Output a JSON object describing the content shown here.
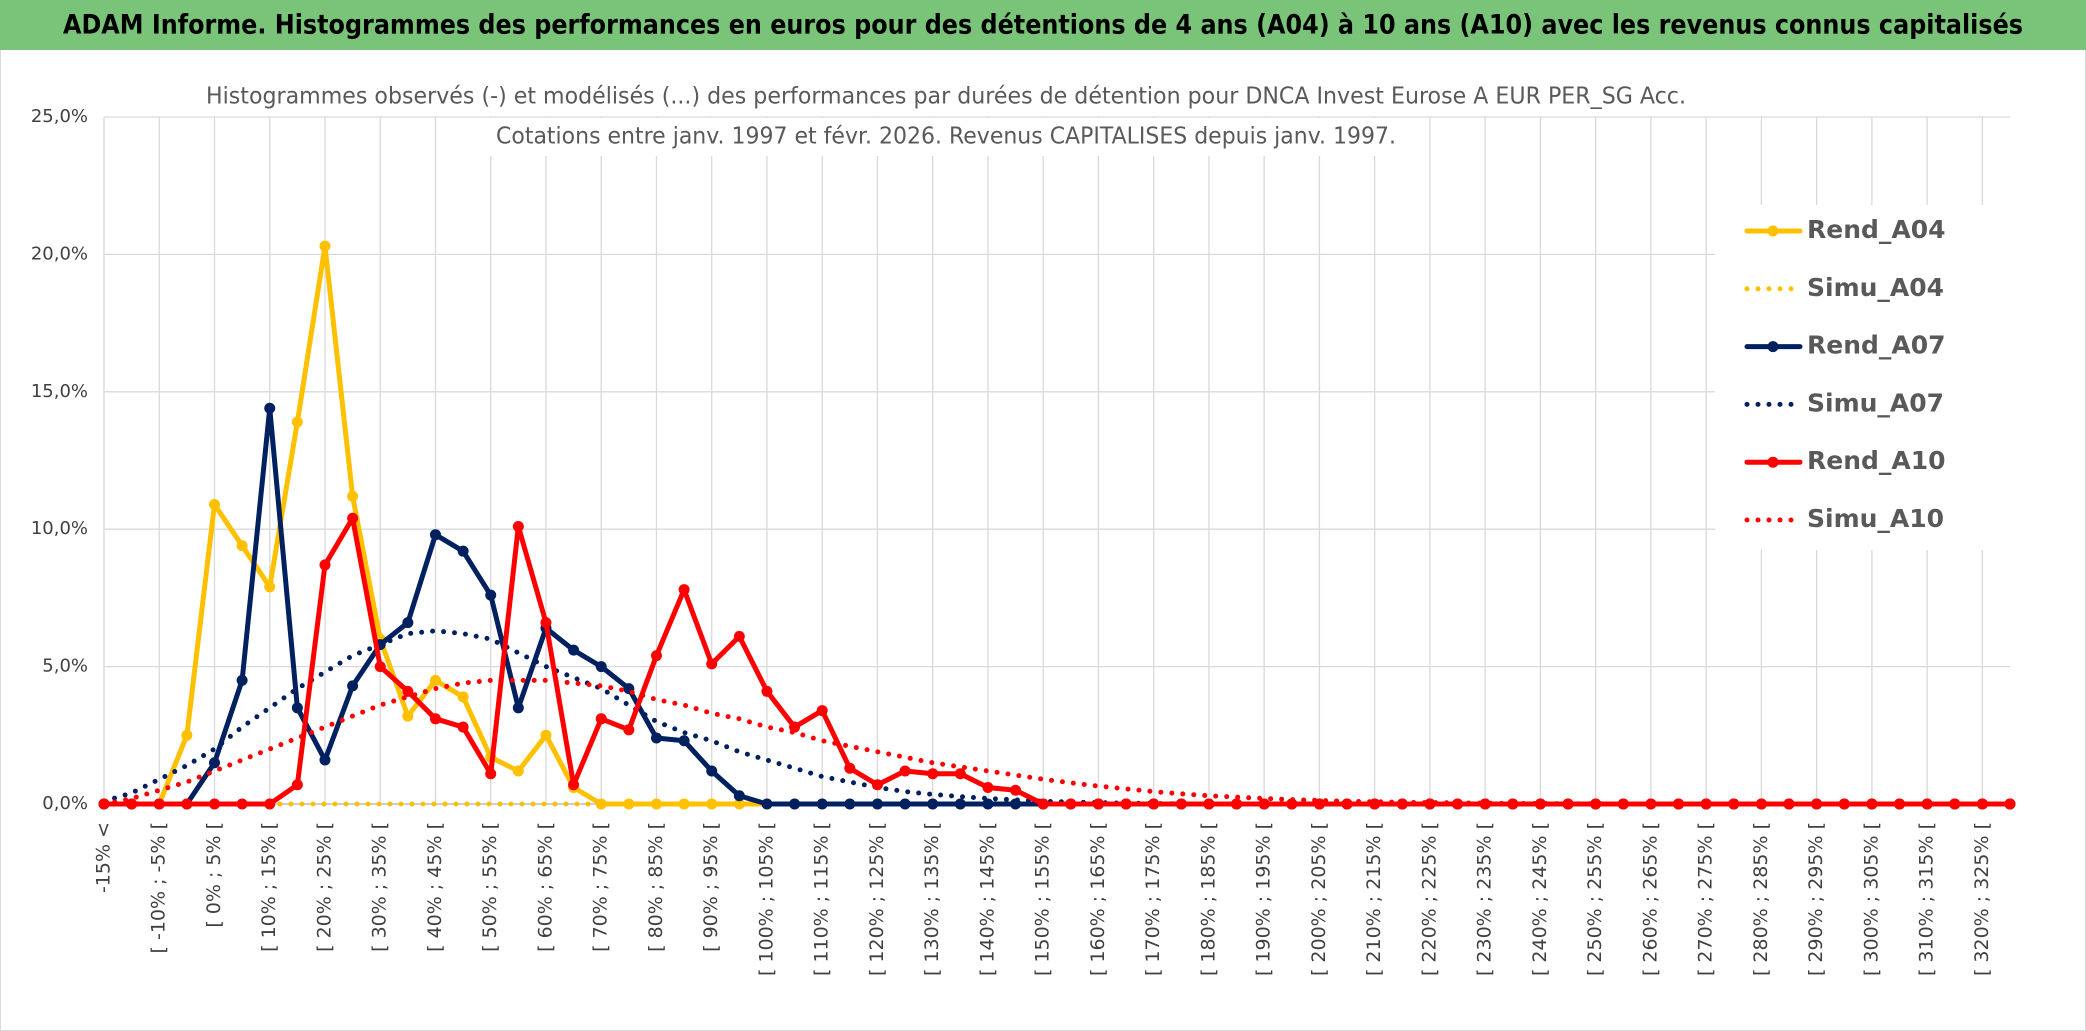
{
  "chart_data": {
    "type": "line",
    "title": "ADAM Informe. Histogrammes des performances en euros pour des détentions de 4 ans (A04) à 10 ans (A10) avec les revenus connus capitalisés",
    "subtitle": [
      "Histogrammes observés (-) et modélisés (...) des performances par durées de détention pour DNCA Invest Eurose A EUR PER_SG Acc.",
      "Cotations entre janv. 1997 et févr. 2026. Revenus CAPITALISES depuis janv. 1997."
    ],
    "categories": [
      "-15% <",
      null,
      "[ -10% ; -5% [",
      null,
      "[ 0% ; 5% [",
      null,
      "[ 10% ; 15% [",
      null,
      "[ 20% ; 25% [",
      null,
      "[ 30% ; 35% [",
      null,
      "[ 40% ; 45% [",
      null,
      "[ 50% ; 55% [",
      null,
      "[ 60% ; 65% [",
      null,
      "[ 70% ; 75% [",
      null,
      "[ 80% ; 85% [",
      null,
      "[ 90% ; 95% [",
      null,
      "[ 100% ; 105% [",
      null,
      "[ 110% ; 115% [",
      null,
      "[ 120% ; 125% [",
      null,
      "[ 130% ; 135% [",
      null,
      "[ 140% ; 145% [",
      null,
      "[ 150% ; 155% [",
      null,
      "[ 160% ; 165% [",
      null,
      "[ 170% ; 175% [",
      null,
      "[ 180% ; 185% [",
      null,
      "[ 190% ; 195% [",
      null,
      "[ 200% ; 205% [",
      null,
      "[ 210% ; 215% [",
      null,
      "[ 220% ; 225% [",
      null,
      "[ 230% ; 235% [",
      null,
      "[ 240% ; 245% [",
      null,
      "[ 250% ; 255% [",
      null,
      "[ 260% ; 265% [",
      null,
      "[ 270% ; 275% [",
      null,
      "[ 280% ; 285% [",
      null,
      "[ 290% ; 295% [",
      null,
      "[ 300% ; 305% [",
      null,
      "[ 310% ; 315% [",
      null,
      "[ 320% ; 325% [",
      null
    ],
    "series": [
      {
        "name": "Rend_A04",
        "color": "#ffc000",
        "line_style": "solid",
        "values": [
          0,
          0,
          0,
          2.5,
          10.9,
          9.4,
          7.9,
          13.9,
          20.3,
          11.2,
          6.0,
          3.2,
          4.5,
          3.9,
          1.7,
          1.2,
          2.5,
          0.6,
          0,
          0,
          0,
          0,
          0,
          0,
          0,
          0,
          0,
          0,
          0,
          0,
          0,
          0,
          0,
          0,
          0,
          0,
          0,
          0,
          0,
          0,
          0,
          0,
          0,
          0,
          0,
          0,
          0,
          0,
          0,
          0,
          0,
          0,
          0,
          0,
          0,
          0,
          0,
          0,
          0,
          0,
          0,
          0,
          0,
          0,
          0,
          0,
          0,
          0,
          0,
          0
        ]
      },
      {
        "name": "Simu_A04",
        "color": "#ffc000",
        "line_style": "dotted",
        "values": [
          0,
          0,
          0,
          0,
          0,
          0,
          0,
          0,
          0,
          0,
          0,
          0,
          0,
          0,
          0,
          0,
          0,
          0,
          0,
          0,
          0,
          0,
          0,
          0,
          0,
          0,
          0,
          0,
          0,
          0,
          0,
          0,
          0,
          0,
          0,
          0,
          0,
          0,
          0,
          0,
          0,
          0,
          0,
          0,
          0,
          0,
          0,
          0,
          0,
          0,
          0,
          0,
          0,
          0,
          0,
          0,
          0,
          0,
          0,
          0,
          0,
          0,
          0,
          0,
          0,
          0,
          0,
          0,
          0,
          0
        ]
      },
      {
        "name": "Rend_A07",
        "color": "#002060",
        "line_style": "solid",
        "values": [
          0,
          0,
          0,
          0,
          1.5,
          4.5,
          14.4,
          3.5,
          1.6,
          4.3,
          5.8,
          6.6,
          9.8,
          9.2,
          7.6,
          3.5,
          6.4,
          5.6,
          5.0,
          4.2,
          2.4,
          2.3,
          1.2,
          0.3,
          0,
          0,
          0,
          0,
          0,
          0,
          0,
          0,
          0,
          0,
          0,
          0,
          0,
          0,
          0,
          0,
          0,
          0,
          0,
          0,
          0,
          0,
          0,
          0,
          0,
          0,
          0,
          0,
          0,
          0,
          0,
          0,
          0,
          0,
          0,
          0,
          0,
          0,
          0,
          0,
          0,
          0,
          0,
          0,
          0,
          0
        ]
      },
      {
        "name": "Simu_A07",
        "color": "#002060",
        "line_style": "dotted",
        "values": [
          0.1,
          0.4,
          0.9,
          1.4,
          2.0,
          2.8,
          3.5,
          4.2,
          4.8,
          5.4,
          5.8,
          6.2,
          6.3,
          6.2,
          6.0,
          5.5,
          5.0,
          4.6,
          4.2,
          3.6,
          3.0,
          2.6,
          2.3,
          1.9,
          1.6,
          1.3,
          1.0,
          0.8,
          0.6,
          0.45,
          0.35,
          0.27,
          0.2,
          0.15,
          0.1,
          0.07,
          0.05,
          0.03,
          0.02,
          0,
          0,
          0,
          0,
          0,
          0,
          0,
          0,
          0,
          0,
          0,
          0,
          0,
          0,
          0,
          0,
          0,
          0,
          0,
          0,
          0,
          0,
          0,
          0,
          0,
          0,
          0,
          0,
          0,
          0,
          0
        ]
      },
      {
        "name": "Rend_A10",
        "color": "#ff0000",
        "line_style": "solid",
        "values": [
          0,
          0,
          0,
          0,
          0,
          0,
          0,
          0.7,
          8.7,
          10.4,
          5.0,
          4.1,
          3.1,
          2.8,
          1.1,
          10.1,
          6.6,
          0.7,
          3.1,
          2.7,
          5.4,
          7.8,
          5.1,
          6.1,
          4.1,
          2.8,
          3.4,
          1.3,
          0.7,
          1.2,
          1.1,
          1.1,
          0.6,
          0.5,
          0,
          0,
          0,
          0,
          0,
          0,
          0,
          0,
          0,
          0,
          0,
          0,
          0,
          0,
          0,
          0,
          0,
          0,
          0,
          0,
          0,
          0,
          0,
          0,
          0,
          0,
          0,
          0,
          0,
          0,
          0,
          0,
          0,
          0,
          0,
          0
        ]
      },
      {
        "name": "Simu_A10",
        "color": "#ff0000",
        "line_style": "dotted",
        "values": [
          0,
          0.2,
          0.5,
          0.8,
          1.2,
          1.6,
          2.0,
          2.4,
          2.8,
          3.2,
          3.6,
          3.9,
          4.2,
          4.4,
          4.5,
          4.5,
          4.5,
          4.4,
          4.3,
          4.1,
          3.8,
          3.6,
          3.3,
          3.1,
          2.8,
          2.6,
          2.3,
          2.1,
          1.9,
          1.7,
          1.5,
          1.35,
          1.2,
          1.05,
          0.9,
          0.77,
          0.65,
          0.55,
          0.45,
          0.37,
          0.3,
          0.25,
          0.2,
          0.16,
          0.13,
          0.1,
          0.08,
          0.06,
          0.05,
          0.04,
          0.03,
          0.02,
          0.02,
          0.01,
          0.01,
          0,
          0,
          0,
          0,
          0,
          0,
          0,
          0,
          0,
          0,
          0,
          0,
          0,
          0,
          0
        ]
      }
    ],
    "ylim": [
      0,
      25
    ],
    "yticks": [
      {
        "value": 0,
        "label": "0,0%"
      },
      {
        "value": 5,
        "label": "5,0%"
      },
      {
        "value": 10,
        "label": "10,0%"
      },
      {
        "value": 15,
        "label": "15,0%"
      },
      {
        "value": 20,
        "label": "20,0%"
      },
      {
        "value": 25,
        "label": "25,0%"
      }
    ],
    "grid": true
  }
}
